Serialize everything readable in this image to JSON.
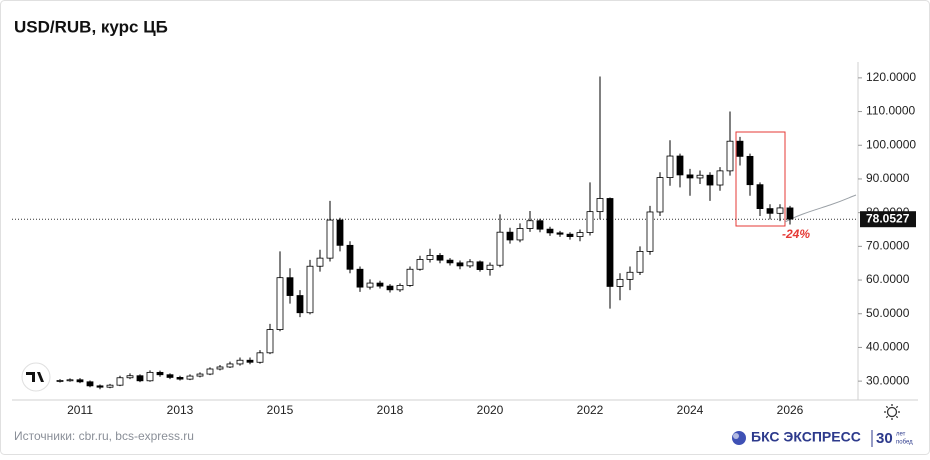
{
  "chart_data": {
    "type": "candlestick",
    "title": "USD/RUB, курс ЦБ",
    "categories": [
      null,
      null,
      "2011",
      null,
      null,
      null,
      null,
      null,
      null,
      null,
      null,
      null,
      "2013",
      null,
      null,
      null,
      null,
      null,
      null,
      null,
      null,
      null,
      "2015",
      null,
      null,
      null,
      null,
      null,
      null,
      null,
      null,
      null,
      null,
      "2018",
      null,
      null,
      null,
      null,
      null,
      null,
      null,
      null,
      null,
      "2020",
      null,
      null,
      null,
      null,
      null,
      null,
      null,
      null,
      null,
      "2022",
      null,
      null,
      null,
      null,
      null,
      null,
      null,
      null,
      null,
      "2024",
      null,
      null,
      null,
      null,
      null,
      null,
      null,
      null,
      null,
      "2026"
    ],
    "open": [
      30.0,
      30.2,
      30.4,
      29.8,
      28.6,
      28.2,
      28.8,
      31,
      31.6,
      30.1,
      32.6,
      31.9,
      31.1,
      30.6,
      31.5,
      32.1,
      33.6,
      34.2,
      35.1,
      36.2,
      35.6,
      38.4,
      45.3,
      60.7,
      55.4,
      50.3,
      64.1,
      66.5,
      77.8,
      70.3,
      63.2,
      57.9,
      59.1,
      58.2,
      57.1,
      58.4,
      63.2,
      66.1,
      67.3,
      65.9,
      65.1,
      64.2,
      65.4,
      63.1,
      64.4,
      74.2,
      71.9,
      75.3,
      77.6,
      75.1,
      74.0,
      73.6,
      72.9,
      74.1,
      80.3,
      84.2,
      58.1,
      60.2,
      62.3,
      68.5,
      80.2,
      90.4,
      96.8,
      91.2,
      90.3,
      91.1,
      88.2,
      92.4,
      101.2,
      96.7,
      88.3,
      81.2,
      79.8,
      81.4
    ],
    "high": [
      30.6,
      30.8,
      30.9,
      30.2,
      29.0,
      29.2,
      31.6,
      32.3,
      32.0,
      33.2,
      33.1,
      32.3,
      31.6,
      32.0,
      32.6,
      34.1,
      34.8,
      35.8,
      37.0,
      37.0,
      39.2,
      47.0,
      68.5,
      63.5,
      57.0,
      66.0,
      69.0,
      83.5,
      78.5,
      71.5,
      64.0,
      60.2,
      59.8,
      58.8,
      59.0,
      64.0,
      67.2,
      69.3,
      68.0,
      66.5,
      65.8,
      66.2,
      65.8,
      65.2,
      79.5,
      75.5,
      76.8,
      80.5,
      78.2,
      75.8,
      74.6,
      74.2,
      75.0,
      89.0,
      120.4,
      84.5,
      62.0,
      64.0,
      70.0,
      82.0,
      92.0,
      101.5,
      97.5,
      93.0,
      92.5,
      92.0,
      93.5,
      110.0,
      102.5,
      97.5,
      89.0,
      82.5,
      82.5,
      82.0
    ],
    "low": [
      29.6,
      29.8,
      29.4,
      28.2,
      27.6,
      27.9,
      28.5,
      30.6,
      29.7,
      29.8,
      31.3,
      30.6,
      30.2,
      30.3,
      31.1,
      31.8,
      33.2,
      33.9,
      34.6,
      35.0,
      35.2,
      38.0,
      44.8,
      53.0,
      49.0,
      49.8,
      62.5,
      65.5,
      68.5,
      62.0,
      56.5,
      57.2,
      57.5,
      56.3,
      56.5,
      58.0,
      62.8,
      65.2,
      65.0,
      64.3,
      63.2,
      63.6,
      62.5,
      61.3,
      63.8,
      70.8,
      71.2,
      74.3,
      74.2,
      73.1,
      72.8,
      72.0,
      71.5,
      73.2,
      78.0,
      51.5,
      54.0,
      57.0,
      61.5,
      67.5,
      79.0,
      88.0,
      87.5,
      85.0,
      88.5,
      83.5,
      86.5,
      91.0,
      94.0,
      85.0,
      79.0,
      78.0,
      77.5,
      76.5
    ],
    "close": [
      30.2,
      30.4,
      29.8,
      28.6,
      28.2,
      28.8,
      31,
      31.6,
      30.1,
      32.6,
      31.9,
      31.1,
      30.6,
      31.5,
      32.1,
      33.6,
      34.2,
      35.1,
      36.2,
      35.6,
      38.4,
      45.3,
      60.7,
      55.4,
      50.3,
      64.1,
      66.5,
      77.8,
      70.3,
      63.2,
      57.9,
      59.1,
      58.2,
      57.1,
      58.4,
      63.2,
      66.1,
      67.3,
      65.9,
      65.1,
      64.2,
      65.4,
      63.1,
      64.4,
      74.2,
      71.9,
      75.3,
      77.6,
      75.1,
      74.0,
      73.6,
      72.9,
      74.1,
      80.3,
      84.2,
      58.1,
      60.2,
      62.3,
      68.5,
      80.2,
      90.4,
      96.8,
      91.2,
      90.3,
      91.1,
      88.2,
      92.4,
      101.2,
      96.7,
      88.3,
      81.2,
      79.8,
      81.4,
      78.1
    ],
    "up_color": "#ffffff",
    "down_color": "#000000",
    "ylim": [
      24.4,
      125.3
    ],
    "yticks": [
      {
        "value": 30,
        "label": "30.0000"
      },
      {
        "value": 40,
        "label": "40.0000"
      },
      {
        "value": 50,
        "label": "50.0000"
      },
      {
        "value": 60,
        "label": "60.0000"
      },
      {
        "value": 70,
        "label": "70.0000"
      },
      {
        "value": 80,
        "label": "80.0000"
      },
      {
        "value": 90,
        "label": "90.0000"
      },
      {
        "value": 100,
        "label": "100.0000"
      },
      {
        "value": 110,
        "label": "110.0000"
      },
      {
        "value": 120,
        "label": "120.0000"
      }
    ],
    "last_price": 78.0527,
    "annotation": "-24%"
  },
  "footer": {
    "sources": "Источники: cbr.ru, bcs-express.ru",
    "brand": "БКС ЭКСПРЕСС",
    "badge_number": "30",
    "badge_text": [
      "лет",
      "побед"
    ]
  }
}
